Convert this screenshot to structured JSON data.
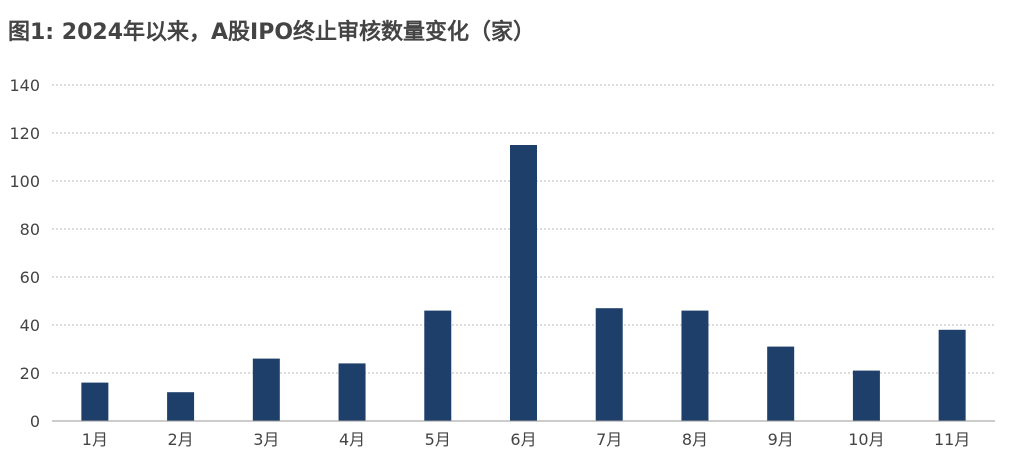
{
  "chart_data": {
    "type": "bar",
    "title": "图1: 2024年以来，A股IPO终止审核数量变化（家）",
    "xlabel": "",
    "ylabel": "",
    "categories": [
      "1月",
      "2月",
      "3月",
      "4月",
      "5月",
      "6月",
      "7月",
      "8月",
      "9月",
      "10月",
      "11月"
    ],
    "values": [
      16,
      12,
      26,
      24,
      46,
      115,
      47,
      46,
      31,
      21,
      38
    ],
    "ylim": [
      0,
      140
    ],
    "yticks": [
      "0",
      "20",
      "40",
      "60",
      "80",
      "100",
      "120",
      "140"
    ],
    "grid": true,
    "legend": "none",
    "bar_color": "#1f3f6b"
  }
}
